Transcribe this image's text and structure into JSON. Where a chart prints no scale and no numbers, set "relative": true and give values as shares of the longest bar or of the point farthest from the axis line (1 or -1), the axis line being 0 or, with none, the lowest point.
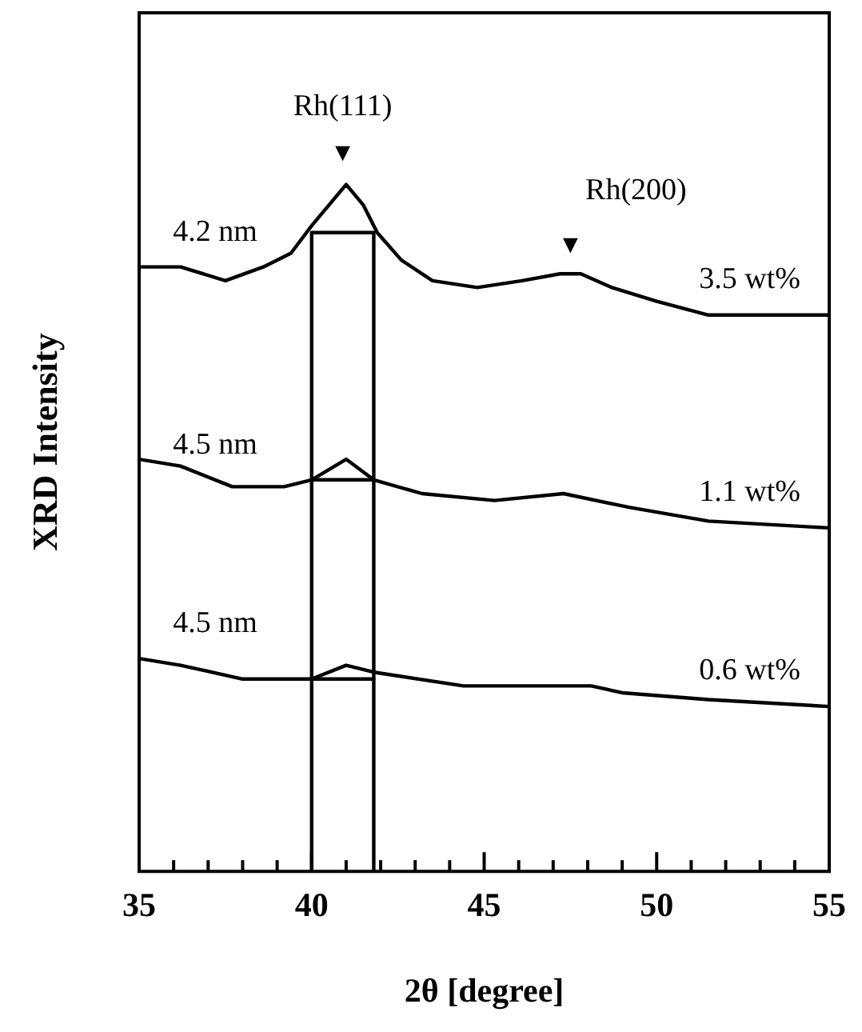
{
  "chart_data": {
    "type": "line",
    "xlabel": "2θ [degree]",
    "ylabel": "XRD Intensity",
    "relative": true,
    "xlim": [
      35,
      55
    ],
    "xticks": [
      35,
      {
        "value": 36,
        "label": null
      },
      {
        "value": 37,
        "label": null
      },
      {
        "value": 38,
        "label": null
      },
      {
        "value": 39,
        "label": null
      },
      40,
      {
        "value": 41,
        "label": null
      },
      {
        "value": 42,
        "label": null
      },
      {
        "value": 43,
        "label": null
      },
      {
        "value": 44,
        "label": null
      },
      45,
      {
        "value": 46,
        "label": null
      },
      {
        "value": 47,
        "label": null
      },
      {
        "value": 48,
        "label": null
      },
      {
        "value": 49,
        "label": null
      },
      50,
      {
        "value": 51,
        "label": null
      },
      {
        "value": 52,
        "label": null
      },
      {
        "value": 53,
        "label": null
      },
      {
        "value": 54,
        "label": null
      },
      55
    ],
    "series": [
      {
        "name": "3.5 wt%",
        "color": "#000000",
        "x": [
          35,
          36.2,
          37.5,
          38.6,
          39.4,
          40.0,
          40.5,
          41.0,
          41.5,
          41.9,
          42.6,
          43.5,
          44.8,
          46.1,
          47.2,
          47.8,
          48.7,
          50.0,
          51.5,
          53.0,
          55
        ],
        "values": [
          0.88,
          0.88,
          0.86,
          0.88,
          0.9,
          0.94,
          0.97,
          1.0,
          0.97,
          0.93,
          0.89,
          0.86,
          0.85,
          0.86,
          0.87,
          0.87,
          0.85,
          0.83,
          0.81,
          0.81,
          0.81
        ]
      },
      {
        "name": "1.1 wt%",
        "color": "#000000",
        "x": [
          35,
          36.2,
          37.7,
          39.2,
          40.0,
          41.0,
          41.8,
          43.2,
          45.3,
          47.3,
          49.2,
          51.5,
          55
        ],
        "values": [
          0.6,
          0.59,
          0.56,
          0.56,
          0.57,
          0.6,
          0.57,
          0.55,
          0.54,
          0.55,
          0.53,
          0.51,
          0.5
        ]
      },
      {
        "name": "0.6 wt%",
        "color": "#000000",
        "x": [
          35,
          36.2,
          38.0,
          39.7,
          40.0,
          41.0,
          41.8,
          44.4,
          48.1,
          49.0,
          51.5,
          55
        ],
        "values": [
          0.31,
          0.3,
          0.28,
          0.28,
          0.28,
          0.3,
          0.29,
          0.27,
          0.27,
          0.26,
          0.25,
          0.24
        ]
      },
      {
        "type": "line",
        "color": "#000000",
        "x": [
          40.0,
          40.0,
          41.8,
          41.8
        ],
        "values": [
          0,
          0.93,
          0.93,
          0
        ]
      },
      {
        "type": "line",
        "color": "#000000",
        "x": [
          40.0,
          41.8
        ],
        "values": [
          0.57,
          0.57
        ]
      },
      {
        "type": "line",
        "color": "#000000",
        "x": [
          40.0,
          41.8
        ],
        "values": [
          0.28,
          0.28
        ]
      }
    ],
    "annotations": [
      "Rh(111)",
      "▼",
      "Rh(200)",
      "▼",
      "4.2 nm",
      "4.5 nm",
      "4.5 nm"
    ],
    "legend": false,
    "grid": false
  }
}
